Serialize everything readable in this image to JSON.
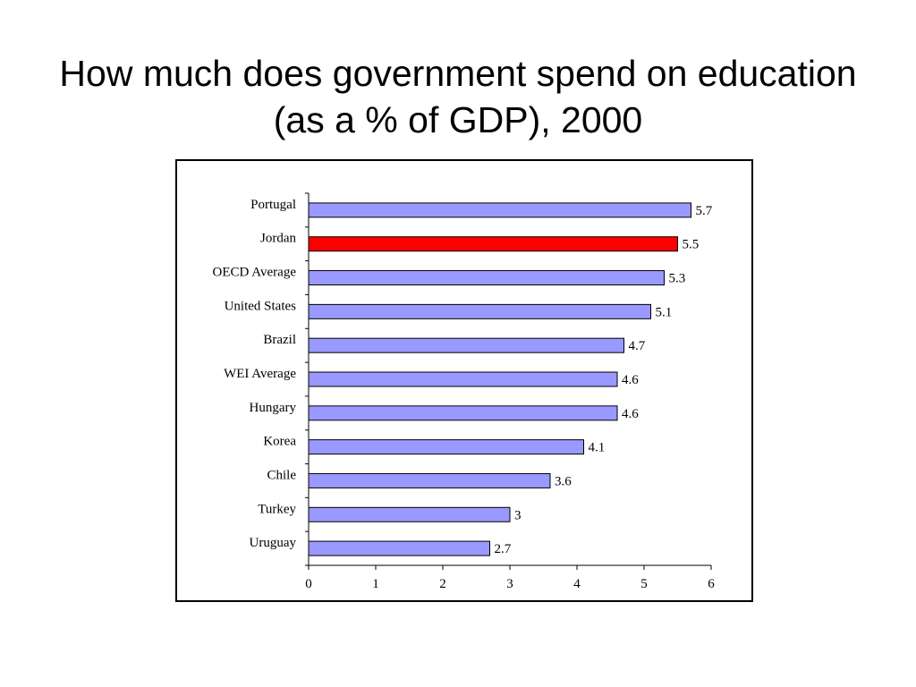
{
  "title": "How much does government spend on education (as a % of GDP), 2000",
  "chart_data": {
    "type": "bar",
    "orientation": "horizontal",
    "title": "How much does government spend on education (as a % of GDP), 2000",
    "xlabel": "",
    "ylabel": "",
    "xlim": [
      0,
      6
    ],
    "x_ticks": [
      "0",
      "1",
      "2",
      "3",
      "4",
      "5",
      "6"
    ],
    "grid": false,
    "legend": "none",
    "categories": [
      "Portugal",
      "Jordan",
      "OECD Average",
      "United States",
      "Brazil",
      "WEI Average",
      "Hungary",
      "Korea",
      "Chile",
      "Turkey",
      "Uruguay"
    ],
    "values": [
      5.7,
      5.5,
      5.3,
      5.1,
      4.7,
      4.6,
      4.6,
      4.1,
      3.6,
      3,
      2.7
    ],
    "value_labels": [
      "5.7",
      "5.5",
      "5.3",
      "5.1",
      "4.7",
      "4.6",
      "4.6",
      "4.1",
      "3.6",
      "3",
      "2.7"
    ],
    "highlight_category": "Jordan",
    "colors": {
      "bar": "#9999ff",
      "highlight": "#ff0000",
      "outline": "#000000"
    }
  }
}
